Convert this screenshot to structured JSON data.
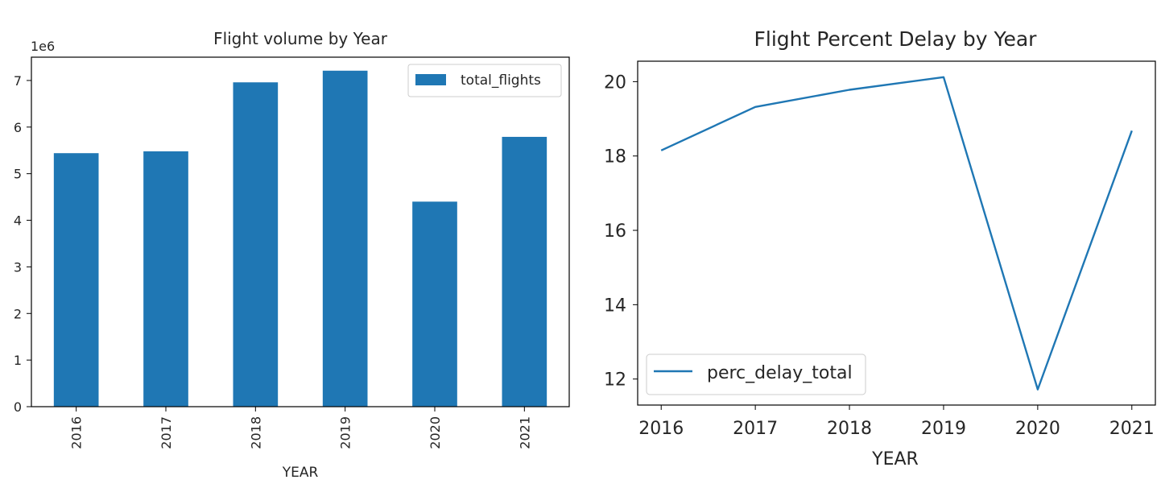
{
  "chart_data": [
    {
      "type": "bar",
      "title": "Flight volume by Year",
      "xlabel": "YEAR",
      "ylabel": "",
      "y_multiplier": "1e6",
      "categories": [
        "2016",
        "2017",
        "2018",
        "2019",
        "2020",
        "2021"
      ],
      "series": [
        {
          "name": "total_flights",
          "values": [
            5.44,
            5.48,
            6.96,
            7.21,
            4.4,
            5.79
          ]
        }
      ],
      "ylim": [
        0,
        7.5
      ],
      "yticks": [
        0,
        1,
        2,
        3,
        4,
        5,
        6,
        7
      ],
      "x_tick_rotation": "vertical",
      "legend": "top-right",
      "grid": false,
      "color": "#1f77b4"
    },
    {
      "type": "line",
      "title": "Flight Percent Delay by Year",
      "xlabel": "YEAR",
      "ylabel": "",
      "x": [
        2016,
        2017,
        2018,
        2019,
        2020,
        2021
      ],
      "series": [
        {
          "name": "perc_delay_total",
          "values": [
            18.15,
            19.32,
            19.78,
            20.12,
            11.72,
            18.68
          ]
        }
      ],
      "xlim": [
        2015.75,
        2021.25
      ],
      "ylim": [
        11.3,
        20.55
      ],
      "yticks": [
        12,
        14,
        16,
        18,
        20
      ],
      "legend": "bottom-left",
      "grid": false,
      "color": "#1f77b4"
    }
  ]
}
